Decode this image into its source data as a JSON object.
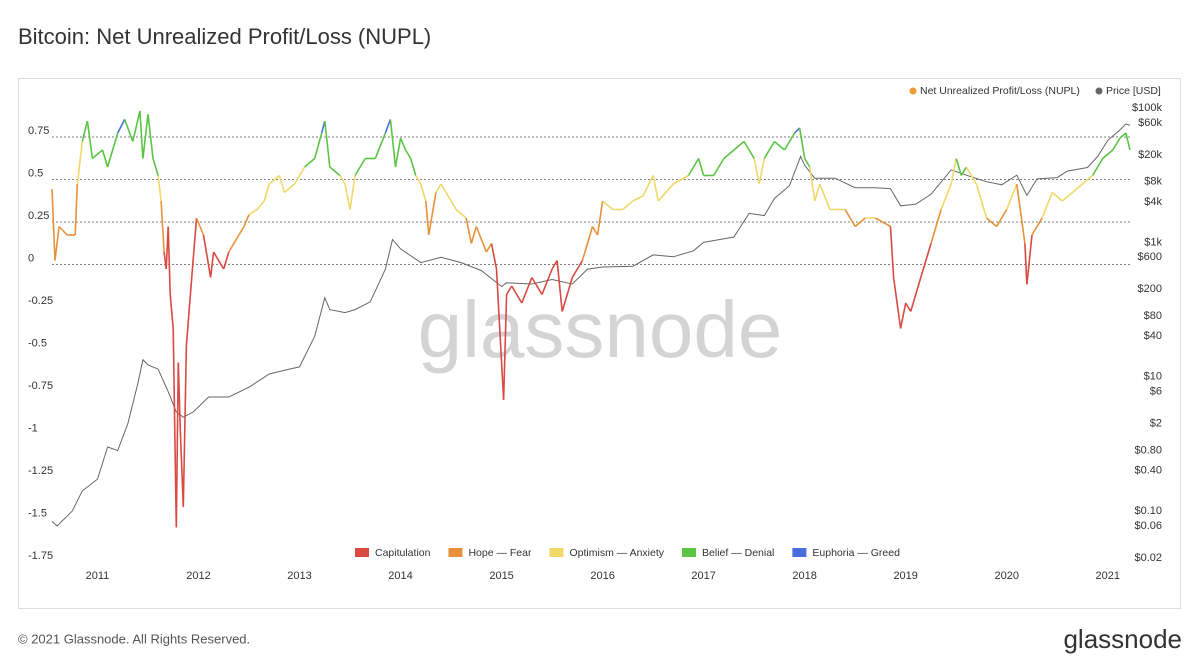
{
  "chart_data": {
    "type": "line",
    "title": "Bitcoin: Net Unrealized Profit/Loss (NUPL)",
    "watermark": "glassnode",
    "xlim": [
      2010.55,
      2021.24
    ],
    "xticks": [
      2011,
      2012,
      2013,
      2014,
      2015,
      2016,
      2017,
      2018,
      2019,
      2020,
      2021
    ],
    "ylim": [
      -1.8,
      0.95
    ],
    "yticks": [
      0.75,
      0.5,
      0.25,
      0,
      -0.25,
      -0.5,
      -0.75,
      -1,
      -1.25,
      -1.5,
      -1.75
    ],
    "y2lim": [
      0.015,
      136000
    ],
    "y2log": true,
    "y2ticks": [
      {
        "value": 100000,
        "label": "$100k"
      },
      {
        "value": 60000,
        "label": "$60k"
      },
      {
        "value": 20000,
        "label": "$20k"
      },
      {
        "value": 8000,
        "label": "$8k"
      },
      {
        "value": 4000,
        "label": "$4k"
      },
      {
        "value": 1000,
        "label": "$1k"
      },
      {
        "value": 600,
        "label": "$600"
      },
      {
        "value": 200,
        "label": "$200"
      },
      {
        "value": 80,
        "label": "$80"
      },
      {
        "value": 40,
        "label": "$40"
      },
      {
        "value": 10,
        "label": "$10"
      },
      {
        "value": 6,
        "label": "$6"
      },
      {
        "value": 2,
        "label": "$2"
      },
      {
        "value": 0.8,
        "label": "$0.80"
      },
      {
        "value": 0.4,
        "label": "$0.40"
      },
      {
        "value": 0.1,
        "label": "$0.10"
      },
      {
        "value": 0.06,
        "label": "$0.06"
      },
      {
        "value": 0.02,
        "label": "$0.02"
      }
    ],
    "zones": [
      {
        "name": "Capitulation",
        "color": "#d94a43"
      },
      {
        "name": "Hope — Fear",
        "color": "#e8913a"
      },
      {
        "name": "Optimism — Anxiety",
        "color": "#f0d86a"
      },
      {
        "name": "Belief — Denial",
        "color": "#5cc444"
      },
      {
        "name": "Euphoria — Greed",
        "color": "#4a6ee0"
      }
    ],
    "series": [
      {
        "name": "Net Unrealized Profit/Loss (NUPL)",
        "color": "#f09a34",
        "x": [
          2010.55,
          2010.58,
          2010.62,
          2010.7,
          2010.78,
          2010.8,
          2010.85,
          2010.9,
          2010.95,
          2011.05,
          2011.1,
          2011.2,
          2011.27,
          2011.35,
          2011.42,
          2011.45,
          2011.5,
          2011.55,
          2011.6,
          2011.63,
          2011.66,
          2011.68,
          2011.7,
          2011.72,
          2011.75,
          2011.78,
          2011.8,
          2011.82,
          2011.85,
          2011.88,
          2011.92,
          2011.98,
          2012.05,
          2012.12,
          2012.15,
          2012.25,
          2012.3,
          2012.4,
          2012.45,
          2012.5,
          2012.58,
          2012.65,
          2012.7,
          2012.8,
          2012.85,
          2012.95,
          2013.05,
          2013.15,
          2013.22,
          2013.25,
          2013.3,
          2013.4,
          2013.45,
          2013.5,
          2013.55,
          2013.65,
          2013.75,
          2013.85,
          2013.9,
          2013.95,
          2014.0,
          2014.05,
          2014.1,
          2014.15,
          2014.2,
          2014.25,
          2014.28,
          2014.35,
          2014.4,
          2014.5,
          2014.55,
          2014.65,
          2014.7,
          2014.75,
          2014.85,
          2014.9,
          2014.95,
          2015.02,
          2015.05,
          2015.1,
          2015.2,
          2015.3,
          2015.4,
          2015.5,
          2015.55,
          2015.6,
          2015.7,
          2015.8,
          2015.85,
          2015.9,
          2015.95,
          2016.0,
          2016.1,
          2016.2,
          2016.3,
          2016.4,
          2016.5,
          2016.55,
          2016.7,
          2016.85,
          2016.95,
          2017.0,
          2017.1,
          2017.2,
          2017.3,
          2017.4,
          2017.5,
          2017.55,
          2017.6,
          2017.7,
          2017.8,
          2017.9,
          2017.95,
          2018.0,
          2018.05,
          2018.1,
          2018.15,
          2018.25,
          2018.4,
          2018.5,
          2018.6,
          2018.7,
          2018.85,
          2018.88,
          2018.95,
          2019.0,
          2019.05,
          2019.15,
          2019.25,
          2019.35,
          2019.45,
          2019.5,
          2019.55,
          2019.6,
          2019.7,
          2019.8,
          2019.9,
          2020.0,
          2020.1,
          2020.18,
          2020.2,
          2020.25,
          2020.35,
          2020.45,
          2020.55,
          2020.65,
          2020.75,
          2020.85,
          2020.95,
          2021.05,
          2021.12,
          2021.18,
          2021.22
        ],
        "values": [
          0.42,
          0.0,
          0.2,
          0.15,
          0.15,
          0.45,
          0.7,
          0.82,
          0.6,
          0.65,
          0.55,
          0.75,
          0.83,
          0.7,
          0.88,
          0.6,
          0.86,
          0.6,
          0.5,
          0.35,
          0.05,
          -0.05,
          0.2,
          -0.2,
          -0.4,
          -1.57,
          -0.6,
          -1.0,
          -1.45,
          -0.5,
          -0.2,
          0.25,
          0.15,
          -0.1,
          0.05,
          -0.05,
          0.05,
          0.15,
          0.2,
          0.27,
          0.3,
          0.35,
          0.45,
          0.5,
          0.4,
          0.45,
          0.55,
          0.6,
          0.75,
          0.82,
          0.55,
          0.5,
          0.45,
          0.3,
          0.5,
          0.6,
          0.6,
          0.75,
          0.83,
          0.55,
          0.72,
          0.65,
          0.6,
          0.5,
          0.45,
          0.35,
          0.15,
          0.4,
          0.45,
          0.35,
          0.3,
          0.25,
          0.1,
          0.2,
          0.05,
          0.1,
          -0.05,
          -0.82,
          -0.2,
          -0.15,
          -0.25,
          -0.1,
          -0.2,
          -0.05,
          0.0,
          -0.3,
          -0.1,
          0.0,
          0.1,
          0.2,
          0.15,
          0.35,
          0.3,
          0.3,
          0.35,
          0.38,
          0.5,
          0.35,
          0.45,
          0.5,
          0.6,
          0.5,
          0.5,
          0.6,
          0.65,
          0.7,
          0.6,
          0.45,
          0.6,
          0.7,
          0.65,
          0.75,
          0.78,
          0.6,
          0.55,
          0.35,
          0.45,
          0.3,
          0.3,
          0.2,
          0.25,
          0.25,
          0.2,
          -0.1,
          -0.4,
          -0.25,
          -0.3,
          -0.1,
          0.1,
          0.3,
          0.45,
          0.6,
          0.5,
          0.55,
          0.45,
          0.25,
          0.2,
          0.3,
          0.45,
          0.1,
          -0.14,
          0.15,
          0.25,
          0.4,
          0.35,
          0.4,
          0.45,
          0.5,
          0.6,
          0.65,
          0.72,
          0.75,
          0.65
        ]
      },
      {
        "name": "Price [USD]",
        "color": "#666666",
        "axis": "y2",
        "x": [
          2010.55,
          2010.6,
          2010.75,
          2010.85,
          2011.0,
          2011.1,
          2011.2,
          2011.3,
          2011.4,
          2011.45,
          2011.5,
          2011.6,
          2011.7,
          2011.78,
          2011.85,
          2011.95,
          2012.1,
          2012.3,
          2012.5,
          2012.7,
          2012.9,
          2013.0,
          2013.15,
          2013.25,
          2013.3,
          2013.45,
          2013.55,
          2013.7,
          2013.85,
          2013.92,
          2014.0,
          2014.2,
          2014.4,
          2014.6,
          2014.8,
          2015.0,
          2015.05,
          2015.3,
          2015.5,
          2015.7,
          2015.85,
          2016.0,
          2016.3,
          2016.5,
          2016.7,
          2016.9,
          2017.0,
          2017.3,
          2017.45,
          2017.6,
          2017.7,
          2017.85,
          2017.96,
          2018.0,
          2018.1,
          2018.3,
          2018.5,
          2018.7,
          2018.85,
          2018.95,
          2019.1,
          2019.25,
          2019.45,
          2019.6,
          2019.8,
          2019.95,
          2020.1,
          2020.2,
          2020.3,
          2020.5,
          2020.6,
          2020.8,
          2020.9,
          2021.0,
          2021.12,
          2021.18,
          2021.22
        ],
        "values": [
          0.07,
          0.06,
          0.1,
          0.2,
          0.3,
          0.9,
          0.8,
          2,
          8,
          18,
          15,
          13,
          6,
          3,
          2.5,
          3,
          5,
          5,
          7,
          11,
          13,
          14,
          40,
          150,
          100,
          90,
          100,
          130,
          400,
          1100,
          800,
          500,
          600,
          500,
          380,
          220,
          250,
          240,
          280,
          240,
          400,
          430,
          440,
          650,
          610,
          750,
          1000,
          1200,
          2700,
          2500,
          4500,
          7000,
          19000,
          14000,
          9000,
          9000,
          6500,
          6500,
          6300,
          3500,
          3700,
          5200,
          12000,
          10000,
          8000,
          7200,
          10000,
          5000,
          8800,
          9200,
          11500,
          13000,
          19000,
          33000,
          47000,
          58000,
          55000
        ]
      }
    ]
  },
  "footer": {
    "copyright": "© 2021 Glassnode. All Rights Reserved.",
    "brand": "glassnode"
  }
}
